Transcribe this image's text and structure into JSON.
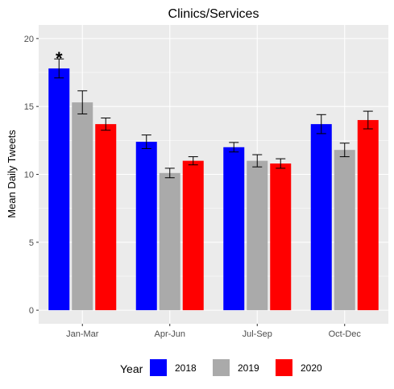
{
  "chart_data": {
    "type": "bar",
    "title": "Clinics/Services",
    "xlabel": "",
    "ylabel": "Mean Daily Tweets",
    "categories": [
      "Jan-Mar",
      "Apr-Jun",
      "Jul-Sep",
      "Oct-Dec"
    ],
    "ylim": [
      -1,
      21
    ],
    "yticks": [
      0,
      5,
      10,
      15,
      20
    ],
    "grid": true,
    "legend": {
      "title": "Year",
      "position": "bottom"
    },
    "series": [
      {
        "name": "2018",
        "color": "#0000ff",
        "values": [
          17.8,
          12.4,
          12.0,
          13.7
        ],
        "err": [
          0.7,
          0.5,
          0.35,
          0.7
        ]
      },
      {
        "name": "2019",
        "color": "#aaaaaa",
        "values": [
          15.3,
          10.1,
          11.0,
          11.8
        ],
        "err": [
          0.85,
          0.35,
          0.45,
          0.5
        ]
      },
      {
        "name": "2020",
        "color": "#ff0000",
        "values": [
          13.7,
          11.0,
          10.8,
          14.0
        ],
        "err": [
          0.45,
          0.3,
          0.35,
          0.65
        ]
      }
    ],
    "annotations": [
      {
        "text": "*",
        "category": "Jan-Mar",
        "series": "2018"
      }
    ]
  }
}
